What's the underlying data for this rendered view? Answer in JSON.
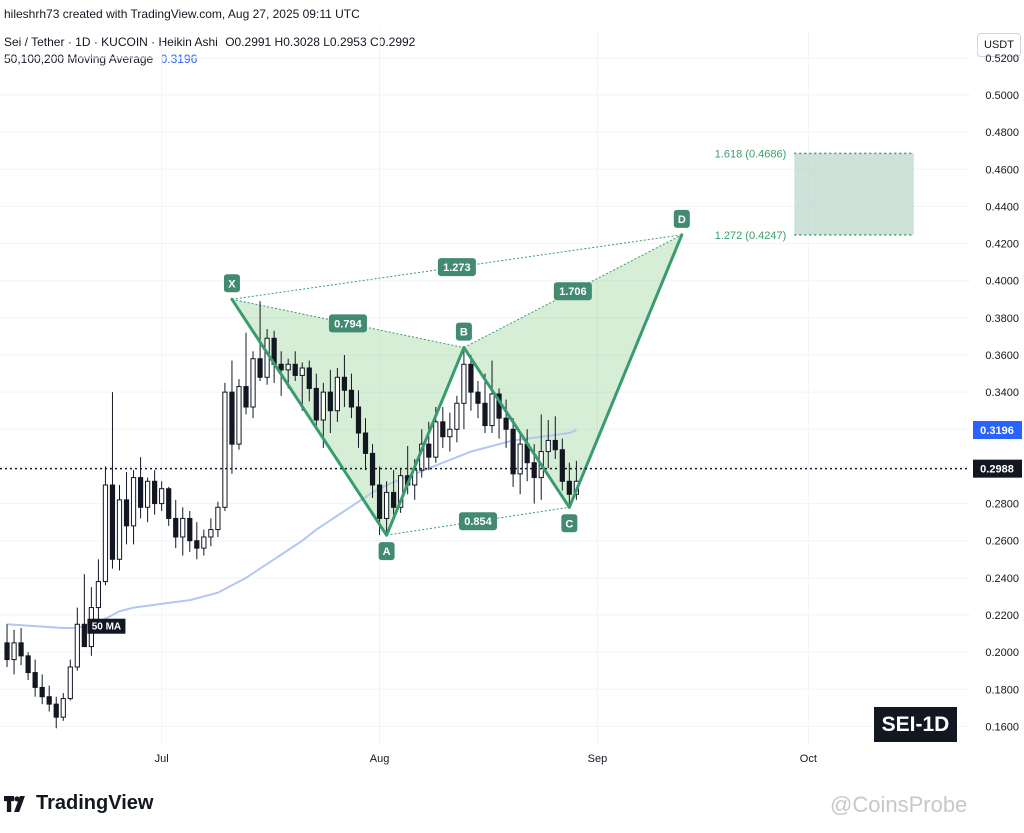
{
  "header": {
    "credit": "hileshrh73 created with TradingView.com, Aug 27, 2025 09:11 UTC",
    "symbol": "Sei / Tether · 1D · KUCOIN · Heikin Ashi",
    "ohlc": "O0.2991  H0.3028  L0.2953  C0.2992",
    "ma_label": "50,100,200 Moving Average",
    "ma_value": "0.3196",
    "currency": "USDT"
  },
  "footer": {
    "brand": "TradingView",
    "watermark": "@CoinsProbe",
    "badge": "SEI-1D"
  },
  "chart_data": {
    "type": "candlestick",
    "y_ticks": [
      "0.5200",
      "0.5000",
      "0.4800",
      "0.4600",
      "0.4400",
      "0.4200",
      "0.4000",
      "0.3800",
      "0.3600",
      "0.3400",
      "0.3200",
      "0.3000",
      "0.2800",
      "0.2600",
      "0.2400",
      "0.2200",
      "0.2000",
      "0.1800",
      "0.1600"
    ],
    "ylim": [
      0.15,
      0.535
    ],
    "x_labels": [
      "Jul",
      "Aug",
      "Sep",
      "Oct"
    ],
    "x_label_days": [
      0,
      31,
      62,
      92
    ],
    "day_range": [
      -23,
      115
    ],
    "current_price": 0.2988,
    "ma_price": 0.3196,
    "ma_label": "50 MA",
    "colors": {
      "up": "#131722",
      "down": "#131722",
      "ma": "#b3c7f5",
      "pattern": "#3a9b6e",
      "label_bg": "#428a70",
      "price_tag": "#131722",
      "ma_tag": "#2962ff",
      "zone": "#b5d3c4"
    },
    "candles": [
      {
        "d": -22,
        "o": 0.205,
        "h": 0.215,
        "l": 0.192,
        "c": 0.196
      },
      {
        "d": -21,
        "o": 0.196,
        "h": 0.212,
        "l": 0.188,
        "c": 0.205
      },
      {
        "d": -20,
        "o": 0.205,
        "h": 0.213,
        "l": 0.193,
        "c": 0.198
      },
      {
        "d": -19,
        "o": 0.198,
        "h": 0.2,
        "l": 0.185,
        "c": 0.189
      },
      {
        "d": -18,
        "o": 0.189,
        "h": 0.196,
        "l": 0.176,
        "c": 0.181
      },
      {
        "d": -17,
        "o": 0.181,
        "h": 0.188,
        "l": 0.172,
        "c": 0.176
      },
      {
        "d": -16,
        "o": 0.176,
        "h": 0.182,
        "l": 0.168,
        "c": 0.172
      },
      {
        "d": -15,
        "o": 0.172,
        "h": 0.176,
        "l": 0.159,
        "c": 0.165
      },
      {
        "d": -14,
        "o": 0.165,
        "h": 0.178,
        "l": 0.163,
        "c": 0.175
      },
      {
        "d": -13,
        "o": 0.175,
        "h": 0.196,
        "l": 0.174,
        "c": 0.192
      },
      {
        "d": -12,
        "o": 0.192,
        "h": 0.224,
        "l": 0.19,
        "c": 0.215
      },
      {
        "d": -11,
        "o": 0.215,
        "h": 0.242,
        "l": 0.205,
        "c": 0.203
      },
      {
        "d": -10,
        "o": 0.203,
        "h": 0.235,
        "l": 0.198,
        "c": 0.224
      },
      {
        "d": -9,
        "o": 0.224,
        "h": 0.25,
        "l": 0.212,
        "c": 0.238
      },
      {
        "d": -8,
        "o": 0.238,
        "h": 0.3,
        "l": 0.236,
        "c": 0.29
      },
      {
        "d": -7,
        "o": 0.29,
        "h": 0.34,
        "l": 0.245,
        "c": 0.25
      },
      {
        "d": -6,
        "o": 0.25,
        "h": 0.29,
        "l": 0.244,
        "c": 0.282
      },
      {
        "d": -5,
        "o": 0.282,
        "h": 0.297,
        "l": 0.258,
        "c": 0.268
      },
      {
        "d": -4,
        "o": 0.268,
        "h": 0.298,
        "l": 0.258,
        "c": 0.294
      },
      {
        "d": -3,
        "o": 0.294,
        "h": 0.305,
        "l": 0.272,
        "c": 0.278
      },
      {
        "d": -2,
        "o": 0.278,
        "h": 0.294,
        "l": 0.27,
        "c": 0.292
      },
      {
        "d": -1,
        "o": 0.292,
        "h": 0.298,
        "l": 0.274,
        "c": 0.28
      },
      {
        "d": 0,
        "o": 0.28,
        "h": 0.292,
        "l": 0.276,
        "c": 0.288
      },
      {
        "d": 1,
        "o": 0.288,
        "h": 0.289,
        "l": 0.268,
        "c": 0.272
      },
      {
        "d": 2,
        "o": 0.272,
        "h": 0.282,
        "l": 0.256,
        "c": 0.262
      },
      {
        "d": 3,
        "o": 0.262,
        "h": 0.278,
        "l": 0.252,
        "c": 0.272
      },
      {
        "d": 4,
        "o": 0.272,
        "h": 0.276,
        "l": 0.254,
        "c": 0.26
      },
      {
        "d": 5,
        "o": 0.26,
        "h": 0.27,
        "l": 0.25,
        "c": 0.256
      },
      {
        "d": 6,
        "o": 0.256,
        "h": 0.266,
        "l": 0.252,
        "c": 0.262
      },
      {
        "d": 7,
        "o": 0.262,
        "h": 0.272,
        "l": 0.257,
        "c": 0.266
      },
      {
        "d": 8,
        "o": 0.266,
        "h": 0.281,
        "l": 0.262,
        "c": 0.278
      },
      {
        "d": 9,
        "o": 0.278,
        "h": 0.345,
        "l": 0.276,
        "c": 0.34
      },
      {
        "d": 10,
        "o": 0.34,
        "h": 0.357,
        "l": 0.296,
        "c": 0.312
      },
      {
        "d": 11,
        "o": 0.312,
        "h": 0.347,
        "l": 0.309,
        "c": 0.343
      },
      {
        "d": 12,
        "o": 0.343,
        "h": 0.372,
        "l": 0.328,
        "c": 0.332
      },
      {
        "d": 13,
        "o": 0.332,
        "h": 0.362,
        "l": 0.326,
        "c": 0.358
      },
      {
        "d": 14,
        "o": 0.358,
        "h": 0.389,
        "l": 0.346,
        "c": 0.348
      },
      {
        "d": 15,
        "o": 0.348,
        "h": 0.374,
        "l": 0.344,
        "c": 0.369
      },
      {
        "d": 16,
        "o": 0.369,
        "h": 0.373,
        "l": 0.345,
        "c": 0.355
      },
      {
        "d": 17,
        "o": 0.355,
        "h": 0.362,
        "l": 0.338,
        "c": 0.352
      },
      {
        "d": 18,
        "o": 0.352,
        "h": 0.358,
        "l": 0.342,
        "c": 0.355
      },
      {
        "d": 19,
        "o": 0.355,
        "h": 0.362,
        "l": 0.346,
        "c": 0.349
      },
      {
        "d": 20,
        "o": 0.349,
        "h": 0.356,
        "l": 0.33,
        "c": 0.353
      },
      {
        "d": 21,
        "o": 0.353,
        "h": 0.357,
        "l": 0.335,
        "c": 0.342
      },
      {
        "d": 22,
        "o": 0.342,
        "h": 0.35,
        "l": 0.322,
        "c": 0.325
      },
      {
        "d": 23,
        "o": 0.325,
        "h": 0.345,
        "l": 0.31,
        "c": 0.34
      },
      {
        "d": 24,
        "o": 0.34,
        "h": 0.352,
        "l": 0.318,
        "c": 0.33
      },
      {
        "d": 25,
        "o": 0.33,
        "h": 0.353,
        "l": 0.324,
        "c": 0.348
      },
      {
        "d": 26,
        "o": 0.348,
        "h": 0.36,
        "l": 0.332,
        "c": 0.341
      },
      {
        "d": 27,
        "o": 0.341,
        "h": 0.35,
        "l": 0.326,
        "c": 0.332
      },
      {
        "d": 28,
        "o": 0.332,
        "h": 0.341,
        "l": 0.31,
        "c": 0.318
      },
      {
        "d": 29,
        "o": 0.318,
        "h": 0.326,
        "l": 0.298,
        "c": 0.307
      },
      {
        "d": 30,
        "o": 0.307,
        "h": 0.312,
        "l": 0.283,
        "c": 0.29
      },
      {
        "d": 31,
        "o": 0.29,
        "h": 0.3,
        "l": 0.263,
        "c": 0.272
      },
      {
        "d": 32,
        "o": 0.272,
        "h": 0.292,
        "l": 0.264,
        "c": 0.286
      },
      {
        "d": 33,
        "o": 0.286,
        "h": 0.298,
        "l": 0.274,
        "c": 0.278
      },
      {
        "d": 34,
        "o": 0.278,
        "h": 0.299,
        "l": 0.275,
        "c": 0.295
      },
      {
        "d": 35,
        "o": 0.295,
        "h": 0.311,
        "l": 0.285,
        "c": 0.29
      },
      {
        "d": 36,
        "o": 0.29,
        "h": 0.304,
        "l": 0.282,
        "c": 0.298
      },
      {
        "d": 37,
        "o": 0.298,
        "h": 0.32,
        "l": 0.294,
        "c": 0.312
      },
      {
        "d": 38,
        "o": 0.312,
        "h": 0.324,
        "l": 0.298,
        "c": 0.305
      },
      {
        "d": 39,
        "o": 0.305,
        "h": 0.332,
        "l": 0.302,
        "c": 0.324
      },
      {
        "d": 40,
        "o": 0.324,
        "h": 0.332,
        "l": 0.31,
        "c": 0.316
      },
      {
        "d": 41,
        "o": 0.316,
        "h": 0.329,
        "l": 0.308,
        "c": 0.32
      },
      {
        "d": 42,
        "o": 0.32,
        "h": 0.338,
        "l": 0.313,
        "c": 0.334
      },
      {
        "d": 43,
        "o": 0.334,
        "h": 0.362,
        "l": 0.32,
        "c": 0.355
      },
      {
        "d": 44,
        "o": 0.355,
        "h": 0.36,
        "l": 0.33,
        "c": 0.34
      },
      {
        "d": 45,
        "o": 0.34,
        "h": 0.346,
        "l": 0.326,
        "c": 0.334
      },
      {
        "d": 46,
        "o": 0.334,
        "h": 0.35,
        "l": 0.318,
        "c": 0.322
      },
      {
        "d": 47,
        "o": 0.322,
        "h": 0.357,
        "l": 0.318,
        "c": 0.339
      },
      {
        "d": 48,
        "o": 0.339,
        "h": 0.342,
        "l": 0.315,
        "c": 0.326
      },
      {
        "d": 49,
        "o": 0.326,
        "h": 0.336,
        "l": 0.31,
        "c": 0.32
      },
      {
        "d": 50,
        "o": 0.32,
        "h": 0.326,
        "l": 0.289,
        "c": 0.296
      },
      {
        "d": 51,
        "o": 0.296,
        "h": 0.318,
        "l": 0.285,
        "c": 0.312
      },
      {
        "d": 52,
        "o": 0.312,
        "h": 0.32,
        "l": 0.292,
        "c": 0.302
      },
      {
        "d": 53,
        "o": 0.302,
        "h": 0.312,
        "l": 0.28,
        "c": 0.294
      },
      {
        "d": 54,
        "o": 0.294,
        "h": 0.328,
        "l": 0.282,
        "c": 0.308
      },
      {
        "d": 55,
        "o": 0.308,
        "h": 0.325,
        "l": 0.299,
        "c": 0.314
      },
      {
        "d": 56,
        "o": 0.314,
        "h": 0.327,
        "l": 0.304,
        "c": 0.309
      },
      {
        "d": 57,
        "o": 0.309,
        "h": 0.315,
        "l": 0.287,
        "c": 0.292
      },
      {
        "d": 58,
        "o": 0.292,
        "h": 0.302,
        "l": 0.278,
        "c": 0.285
      },
      {
        "d": 59,
        "o": 0.285,
        "h": 0.303,
        "l": 0.282,
        "c": 0.292
      }
    ],
    "ma_series": [
      [
        -22,
        0.215
      ],
      [
        -18,
        0.214
      ],
      [
        -14,
        0.213
      ],
      [
        -12,
        0.213
      ],
      [
        -10,
        0.215
      ],
      [
        -8,
        0.218
      ],
      [
        -6,
        0.222
      ],
      [
        -4,
        0.224
      ],
      [
        -2,
        0.225
      ],
      [
        0,
        0.226
      ],
      [
        2,
        0.227
      ],
      [
        4,
        0.228
      ],
      [
        6,
        0.23
      ],
      [
        8,
        0.232
      ],
      [
        10,
        0.236
      ],
      [
        12,
        0.24
      ],
      [
        14,
        0.245
      ],
      [
        16,
        0.25
      ],
      [
        18,
        0.255
      ],
      [
        20,
        0.26
      ],
      [
        22,
        0.266
      ],
      [
        24,
        0.271
      ],
      [
        26,
        0.276
      ],
      [
        28,
        0.281
      ],
      [
        30,
        0.286
      ],
      [
        32,
        0.29
      ],
      [
        34,
        0.293
      ],
      [
        36,
        0.296
      ],
      [
        38,
        0.299
      ],
      [
        40,
        0.302
      ],
      [
        42,
        0.305
      ],
      [
        44,
        0.308
      ],
      [
        46,
        0.31
      ],
      [
        48,
        0.312
      ],
      [
        50,
        0.314
      ],
      [
        52,
        0.315
      ],
      [
        54,
        0.316
      ],
      [
        56,
        0.317
      ],
      [
        58,
        0.318
      ],
      [
        59,
        0.3196
      ]
    ],
    "pattern": {
      "points": [
        {
          "name": "X",
          "d": 10,
          "price": 0.39
        },
        {
          "name": "A",
          "d": 32,
          "price": 0.263
        },
        {
          "name": "B",
          "d": 43,
          "price": 0.364
        },
        {
          "name": "C",
          "d": 58,
          "price": 0.278
        },
        {
          "name": "D",
          "d": 74,
          "price": 0.4247
        }
      ],
      "ratios": [
        {
          "text": "0.794",
          "from": "X",
          "to": "B"
        },
        {
          "text": "1.706",
          "from": "B",
          "to": "D"
        },
        {
          "text": "1.273",
          "from": "X",
          "to": "D"
        },
        {
          "text": "0.854",
          "from": "A",
          "to": "C"
        }
      ],
      "zone": {
        "upper_label": "1.618 (0.4686)",
        "upper": 0.4686,
        "lower_label": "1.272 (0.4247)",
        "lower": 0.4247,
        "d_start": 90,
        "d_end": 107
      }
    }
  }
}
